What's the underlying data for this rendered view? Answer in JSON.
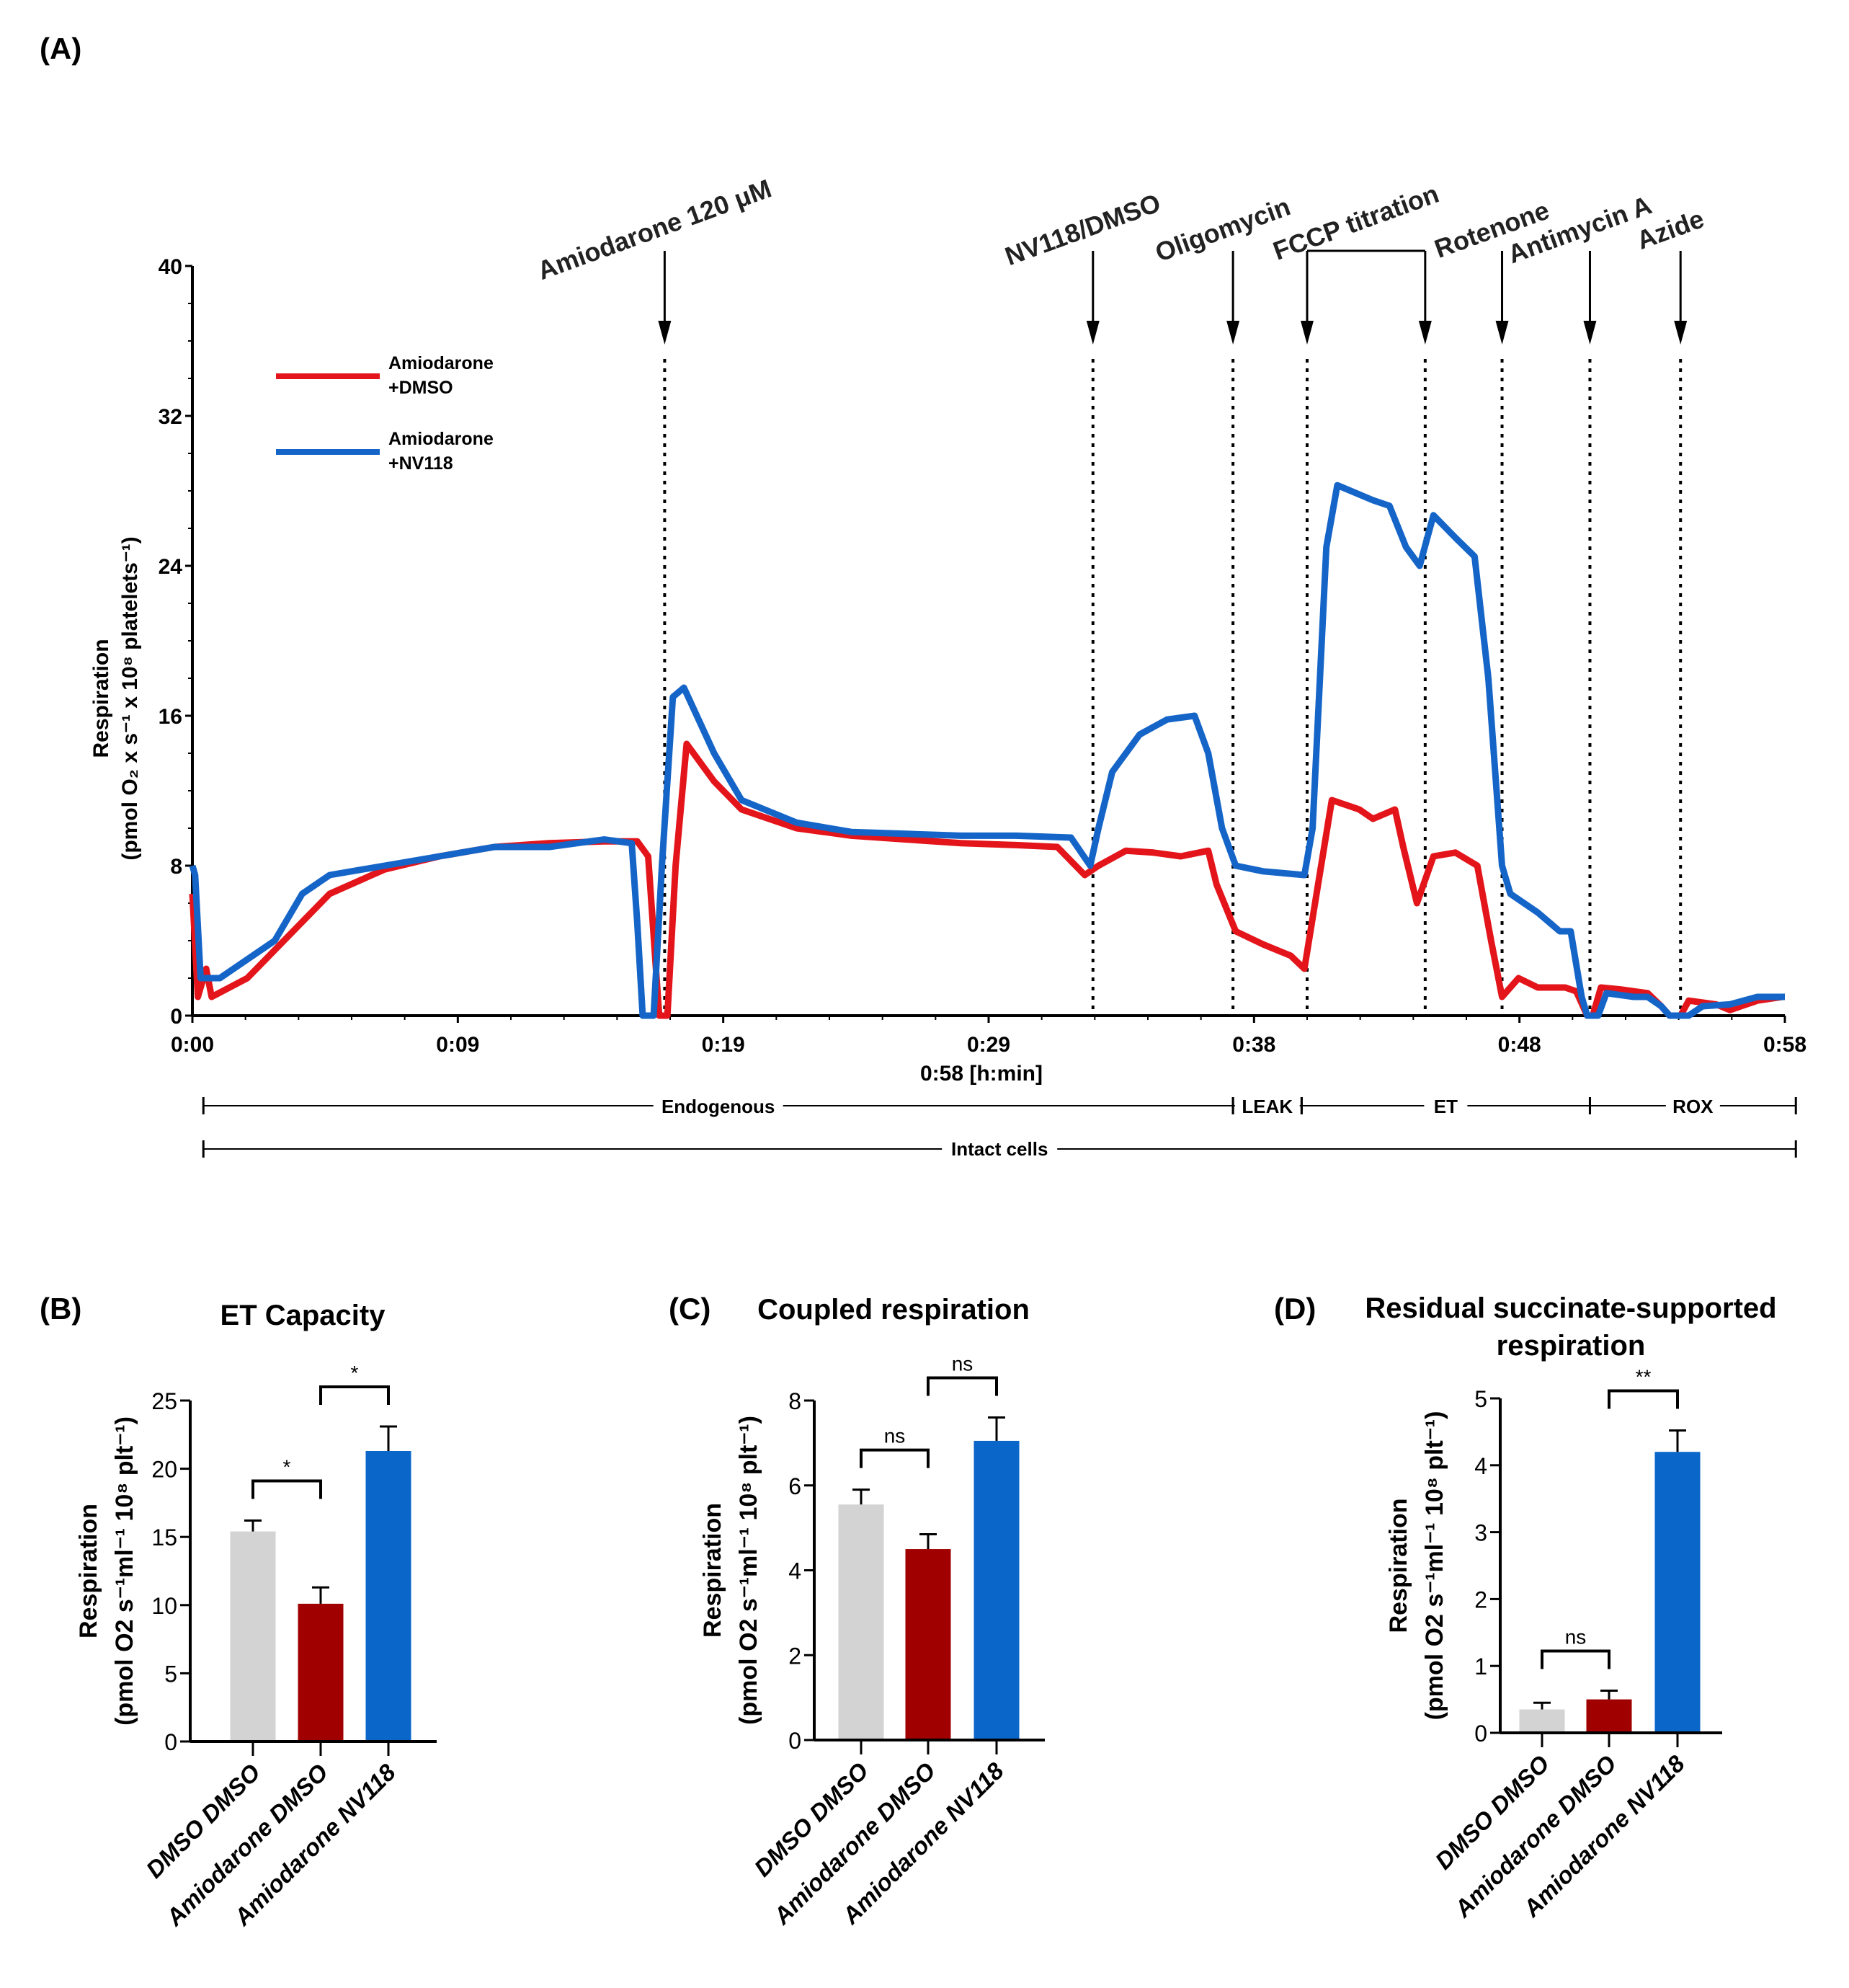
{
  "colors": {
    "red": "#e3151b",
    "blue": "#1565c8",
    "grey": "#d3d3d3",
    "darkred": "#a00000",
    "bluebar": "#0a66c9"
  },
  "chart_data": [
    {
      "panel": "(A)",
      "type": "line",
      "xlabel": "0:58 [h:min]",
      "ylabel_line1": "Respiration",
      "ylabel_line2": "(pmol O₂ x s⁻¹ x 10⁸ platelets⁻¹)",
      "xlim": [
        0,
        58
      ],
      "ylim": [
        0,
        40
      ],
      "yticks": [
        0,
        8,
        16,
        24,
        32,
        40
      ],
      "ytick_labels": [
        "0",
        "8",
        "16",
        "24",
        "32",
        "40"
      ],
      "xtick_labels": [
        "0:00",
        "0:09",
        "0:19",
        "0:29",
        "0:38",
        "0:48",
        "0:58"
      ],
      "legend": {
        "placement": "top-left",
        "entries": [
          {
            "line1": "Amiodarone",
            "line2": "+DMSO",
            "color": "#e3151b"
          },
          {
            "line1": "Amiodarone",
            "line2": "+NV118",
            "color": "#1565c8"
          }
        ]
      },
      "events": [
        {
          "label": "Amiodarone 120 μM",
          "x": 17.2
        },
        {
          "label": "NV118/DMSO",
          "x": 32.8
        },
        {
          "label": "Oligomycin",
          "x": 37.9
        },
        {
          "label": "FCCP titration",
          "x": 40.6,
          "x2": 44.9
        },
        {
          "label": "Rotenone",
          "x": 47.7
        },
        {
          "label": "Antimycin A",
          "x": 50.9
        },
        {
          "label": "Azide",
          "x": 54.2
        }
      ],
      "phases": [
        {
          "label": "Endogenous",
          "start": 0.4,
          "end": 37.9
        },
        {
          "label": "LEAK",
          "start": 37.9,
          "end": 40.4
        },
        {
          "label": "ET",
          "start": 40.4,
          "end": 50.9
        },
        {
          "label": "ROX",
          "start": 50.9,
          "end": 58.4
        }
      ],
      "state": {
        "label": "Intact cells",
        "start": 0.4,
        "end": 58.4
      },
      "series": [
        {
          "name": "Amiodarone +DMSO",
          "color": "#e3151b",
          "points": [
            [
              0,
              6.5
            ],
            [
              0.2,
              1
            ],
            [
              0.5,
              2.5
            ],
            [
              0.7,
              1
            ],
            [
              2,
              2
            ],
            [
              4,
              5
            ],
            [
              5,
              6.5
            ],
            [
              7,
              7.8
            ],
            [
              9,
              8.5
            ],
            [
              11,
              9
            ],
            [
              13,
              9.2
            ],
            [
              15,
              9.3
            ],
            [
              16.2,
              9.3
            ],
            [
              16.6,
              8.5
            ],
            [
              17,
              0
            ],
            [
              17.3,
              0
            ],
            [
              17.6,
              8
            ],
            [
              18,
              14.5
            ],
            [
              19,
              12.5
            ],
            [
              20,
              11
            ],
            [
              22,
              10
            ],
            [
              24,
              9.6
            ],
            [
              26,
              9.4
            ],
            [
              28,
              9.2
            ],
            [
              30,
              9.1
            ],
            [
              31.5,
              9
            ],
            [
              32.5,
              7.5
            ],
            [
              33,
              8
            ],
            [
              34,
              8.8
            ],
            [
              35,
              8.7
            ],
            [
              36,
              8.5
            ],
            [
              37,
              8.8
            ],
            [
              37.3,
              7
            ],
            [
              38,
              4.5
            ],
            [
              39,
              3.8
            ],
            [
              40,
              3.2
            ],
            [
              40.5,
              2.5
            ],
            [
              41,
              7
            ],
            [
              41.5,
              11.5
            ],
            [
              42.5,
              11
            ],
            [
              43,
              10.5
            ],
            [
              43.8,
              11
            ],
            [
              44.1,
              9
            ],
            [
              44.6,
              6
            ],
            [
              45.2,
              8.5
            ],
            [
              46,
              8.7
            ],
            [
              46.8,
              8
            ],
            [
              47.3,
              4
            ],
            [
              47.7,
              1
            ],
            [
              48.3,
              2
            ],
            [
              49,
              1.5
            ],
            [
              50,
              1.5
            ],
            [
              50.4,
              1.3
            ],
            [
              50.8,
              0
            ],
            [
              51,
              0
            ],
            [
              51.3,
              1.5
            ],
            [
              52,
              1.4
            ],
            [
              53,
              1.2
            ],
            [
              53.5,
              0.5
            ],
            [
              53.8,
              0
            ],
            [
              54.2,
              0
            ],
            [
              54.5,
              0.8
            ],
            [
              55.5,
              0.6
            ],
            [
              56,
              0.3
            ],
            [
              57,
              0.8
            ],
            [
              57.9,
              1
            ]
          ]
        },
        {
          "name": "Amiodarone +NV118",
          "color": "#1565c8",
          "points": [
            [
              0,
              8
            ],
            [
              0.1,
              7.5
            ],
            [
              0.3,
              2
            ],
            [
              1,
              2
            ],
            [
              3,
              4
            ],
            [
              4,
              6.5
            ],
            [
              5,
              7.5
            ],
            [
              7,
              8
            ],
            [
              9,
              8.5
            ],
            [
              11,
              9
            ],
            [
              13,
              9
            ],
            [
              15,
              9.4
            ],
            [
              16,
              9.2
            ],
            [
              16.2,
              5
            ],
            [
              16.4,
              0
            ],
            [
              16.8,
              0
            ],
            [
              17.1,
              8
            ],
            [
              17.5,
              17
            ],
            [
              17.9,
              17.5
            ],
            [
              19,
              14
            ],
            [
              20,
              11.5
            ],
            [
              22,
              10.3
            ],
            [
              24,
              9.8
            ],
            [
              26,
              9.7
            ],
            [
              28,
              9.6
            ],
            [
              30,
              9.6
            ],
            [
              32,
              9.5
            ],
            [
              32.7,
              8
            ],
            [
              33,
              10
            ],
            [
              33.5,
              13
            ],
            [
              34.5,
              15
            ],
            [
              35.5,
              15.8
            ],
            [
              36.5,
              16
            ],
            [
              37,
              14
            ],
            [
              37.5,
              10
            ],
            [
              38,
              8
            ],
            [
              39,
              7.7
            ],
            [
              40.5,
              7.5
            ],
            [
              40.8,
              10
            ],
            [
              41.3,
              25
            ],
            [
              41.7,
              28.3
            ],
            [
              43,
              27.5
            ],
            [
              43.6,
              27.2
            ],
            [
              44.2,
              25
            ],
            [
              44.7,
              24
            ],
            [
              45.2,
              26.7
            ],
            [
              46,
              25.5
            ],
            [
              46.7,
              24.5
            ],
            [
              47.2,
              18
            ],
            [
              47.7,
              8
            ],
            [
              48,
              6.5
            ],
            [
              49,
              5.5
            ],
            [
              49.8,
              4.5
            ],
            [
              50.2,
              4.5
            ],
            [
              50.6,
              1
            ],
            [
              50.8,
              0
            ],
            [
              51.2,
              0
            ],
            [
              51.5,
              1.2
            ],
            [
              52.5,
              1
            ],
            [
              53,
              1
            ],
            [
              53.5,
              0.5
            ],
            [
              53.8,
              0
            ],
            [
              54.5,
              0
            ],
            [
              55,
              0.5
            ],
            [
              56,
              0.6
            ],
            [
              57,
              1
            ],
            [
              58,
              1
            ]
          ]
        }
      ]
    },
    {
      "panel": "(B)",
      "type": "bar",
      "title": "ET Capacity",
      "ylabel_line1": "Respiration",
      "ylabel_line2": "(pmol O2 s⁻¹ml⁻¹ 10⁸ plt⁻¹)",
      "ylim": [
        0,
        25
      ],
      "yticks": [
        0,
        5,
        10,
        15,
        20,
        25
      ],
      "ytick_labels": [
        "0",
        "5",
        "10",
        "15",
        "20",
        "25"
      ],
      "categories": [
        "DMSO DMSO",
        "Amiodarone  DMSO",
        "Amiodarone  NV118"
      ],
      "values": [
        15.4,
        10.1,
        21.3
      ],
      "errors": [
        0.8,
        1.2,
        1.8
      ],
      "significance": [
        {
          "from": 0,
          "to": 1,
          "label": "*"
        },
        {
          "from": 1,
          "to": 2,
          "label": "*"
        }
      ]
    },
    {
      "panel": "(C)",
      "type": "bar",
      "title": "Coupled respiration",
      "ylabel_line1": "Respiration",
      "ylabel_line2": "(pmol O2 s⁻¹ml⁻¹ 10⁸ plt⁻¹)",
      "ylim": [
        0,
        8
      ],
      "yticks": [
        0,
        2,
        4,
        6,
        8
      ],
      "ytick_labels": [
        "0",
        "2",
        "4",
        "6",
        "8"
      ],
      "categories": [
        "DMSO DMSO",
        "Amiodarone  DMSO",
        "Amiodarone  NV118"
      ],
      "values": [
        5.55,
        4.5,
        7.05
      ],
      "errors": [
        0.35,
        0.35,
        0.55
      ],
      "significance": [
        {
          "from": 0,
          "to": 1,
          "label": "ns"
        },
        {
          "from": 1,
          "to": 2,
          "label": "ns"
        }
      ]
    },
    {
      "panel": "(D)",
      "type": "bar",
      "title": "Residual succinate-supported",
      "title_line2": "respiration",
      "ylabel_line1": "Respiration",
      "ylabel_line2": "(pmol O2 s⁻¹ml⁻¹ 10⁸ plt⁻¹)",
      "ylim": [
        0,
        5
      ],
      "yticks": [
        0,
        1,
        2,
        3,
        4,
        5
      ],
      "ytick_labels": [
        "0",
        "1",
        "2",
        "3",
        "4",
        "5"
      ],
      "categories": [
        "DMSO DMSO",
        "Amiodarone DMSO",
        "Amiodarone  NV118"
      ],
      "values": [
        0.35,
        0.5,
        4.2
      ],
      "errors": [
        0.1,
        0.13,
        0.32
      ],
      "significance": [
        {
          "from": 0,
          "to": 1,
          "label": "ns"
        },
        {
          "from": 1,
          "to": 2,
          "label": "**"
        }
      ]
    }
  ]
}
